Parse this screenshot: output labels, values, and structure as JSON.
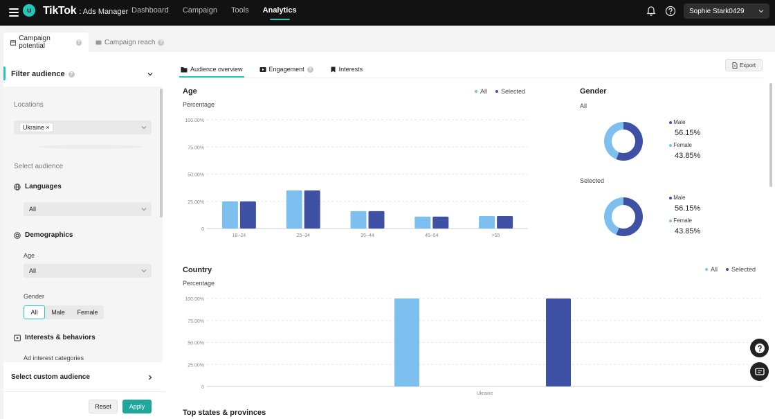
{
  "topbar": {
    "avatar_initial": "u",
    "brand_logo": "TikTok",
    "brand_sub": ": Ads Manager",
    "nav": [
      {
        "label": "Dashboard",
        "active": false
      },
      {
        "label": "Campaign",
        "active": false
      },
      {
        "label": "Tools",
        "active": false
      },
      {
        "label": "Analytics",
        "active": true
      }
    ],
    "user_name": "Sophie Stark0429",
    "accent_color": "#25c7b8"
  },
  "page_tabs": [
    {
      "label": "Campaign potential",
      "icon": "calendar-icon",
      "active": true
    },
    {
      "label": "Campaign reach",
      "icon": "video-icon",
      "active": false
    }
  ],
  "filter": {
    "title": "Filter audience",
    "locations_label": "Locations",
    "location_chip": "Ukraine ×",
    "select_audience_label": "Select audience",
    "languages": {
      "title": "Languages",
      "value": "All"
    },
    "demographics": {
      "title": "Demographics",
      "age_label": "Age",
      "age_value": "All",
      "gender_label": "Gender",
      "gender_options": [
        "All",
        "Male",
        "Female"
      ],
      "gender_selected": "All"
    },
    "interests": {
      "title": "Interests & behaviors",
      "sub": "Ad interest categories"
    },
    "custom_audience": "Select custom audience",
    "reset": "Reset",
    "apply": "Apply"
  },
  "content_tabs": [
    {
      "label": "Audience overview",
      "icon": "folder-icon",
      "active": true
    },
    {
      "label": "Engagement",
      "icon": "play-icon",
      "active": false,
      "help": true
    },
    {
      "label": "Interests",
      "icon": "bookmark-icon",
      "active": false
    }
  ],
  "export_label": "Export",
  "colors": {
    "all": "#7dc0ef",
    "selected": "#3f51a4"
  },
  "age_card": {
    "title": "Age",
    "subtitle": "Percentage",
    "legend_all": "All",
    "legend_selected": "Selected"
  },
  "gender_card": {
    "title": "Gender",
    "all_label": "All",
    "selected_label": "Selected",
    "all": {
      "male_label": "Male",
      "male_pct": "56.15%",
      "female_label": "Female",
      "female_pct": "43.85%"
    },
    "selected": {
      "male_label": "Male",
      "male_pct": "56.15%",
      "female_label": "Female",
      "female_pct": "43.85%"
    }
  },
  "country_card": {
    "title": "Country",
    "subtitle": "Percentage",
    "legend_all": "All",
    "legend_selected": "Selected"
  },
  "states_title": "Top states & provinces",
  "chart_data": [
    {
      "type": "bar",
      "title": "Age",
      "ylabel": "Percentage",
      "categories": [
        "18–24",
        "25–34",
        "35–44",
        "45–54",
        ">55"
      ],
      "series": [
        {
          "name": "All",
          "values": [
            25,
            35,
            16,
            11,
            11.5
          ]
        },
        {
          "name": "Selected",
          "values": [
            25,
            35,
            16,
            11,
            11.5
          ]
        }
      ],
      "yticks": [
        "0",
        "25.00%",
        "50.00%",
        "75.00%",
        "100.00%"
      ],
      "ylim": [
        0,
        100
      ],
      "grid": true,
      "legend": "top-right"
    },
    {
      "type": "pie",
      "title": "Gender",
      "subtitle": "All",
      "labels": [
        "Male",
        "Female"
      ],
      "values": [
        56.15,
        43.85
      ]
    },
    {
      "type": "pie",
      "title": "Gender",
      "subtitle": "Selected",
      "labels": [
        "Male",
        "Female"
      ],
      "values": [
        56.15,
        43.85
      ]
    },
    {
      "type": "bar",
      "title": "Country",
      "ylabel": "Percentage",
      "categories": [
        "Ukraine"
      ],
      "series": [
        {
          "name": "All",
          "values": [
            100
          ]
        },
        {
          "name": "Selected",
          "values": [
            100
          ]
        }
      ],
      "yticks": [
        "0",
        "25.00%",
        "50.00%",
        "75.00%",
        "100.00%"
      ],
      "ylim": [
        0,
        100
      ],
      "grid": true,
      "legend": "top-right"
    }
  ]
}
